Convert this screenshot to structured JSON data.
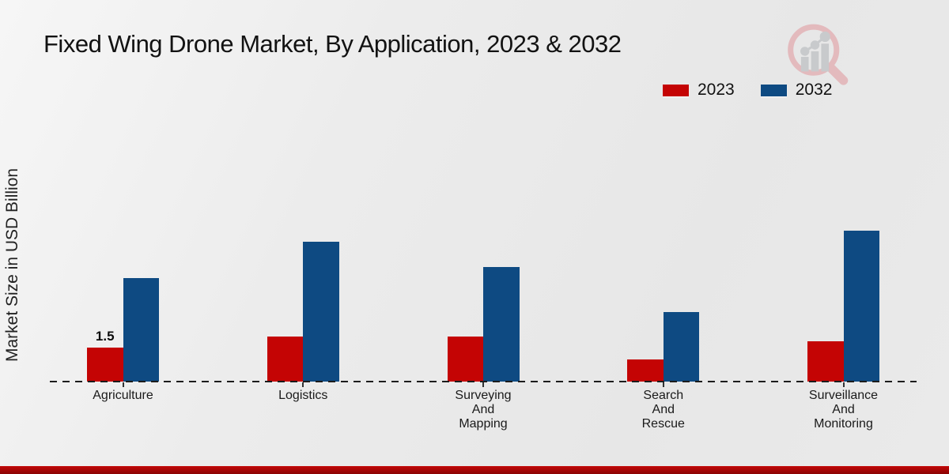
{
  "header": {
    "title": "Fixed Wing Drone Market, By Application, 2023 & 2032"
  },
  "branding": {
    "logo_icon": "magnifier-bar-chart-watermark"
  },
  "colors": {
    "bar_2023": "#c40404",
    "bar_2032": "#0e4a82",
    "bottom_strip": "#a30505",
    "text": "#141414",
    "watermark_ring": "#e3b8bb",
    "watermark_bars": "#c7c9cb"
  },
  "chart_data": {
    "type": "bar",
    "title": "Fixed Wing Drone Market, By Application, 2023 & 2032",
    "xlabel": "",
    "ylabel": "Market Size in USD Billion",
    "categories": [
      "Agriculture",
      "Logistics",
      "Surveying And Mapping",
      "Search And Rescue",
      "Surveillance And Monitoring"
    ],
    "category_label_lines": [
      [
        "Agriculture"
      ],
      [
        "Logistics"
      ],
      [
        "Surveying",
        "And",
        "Mapping"
      ],
      [
        "Search",
        "And",
        "Rescue"
      ],
      [
        "Surveillance",
        "And",
        "Monitoring"
      ]
    ],
    "series": [
      {
        "name": "2023",
        "color": "#c40404",
        "values": [
          1.5,
          2.0,
          2.0,
          1.0,
          1.8
        ]
      },
      {
        "name": "2032",
        "color": "#0e4a82",
        "values": [
          4.6,
          6.2,
          5.1,
          3.1,
          6.7
        ]
      }
    ],
    "value_labels": [
      {
        "series": "2023",
        "category": "Agriculture",
        "text": "1.5"
      }
    ],
    "ylim": [
      0,
      7.5
    ],
    "grid": false,
    "y_axis_ticks_visible": false,
    "legend_position": "top-right",
    "baseline_style": "dashed"
  }
}
